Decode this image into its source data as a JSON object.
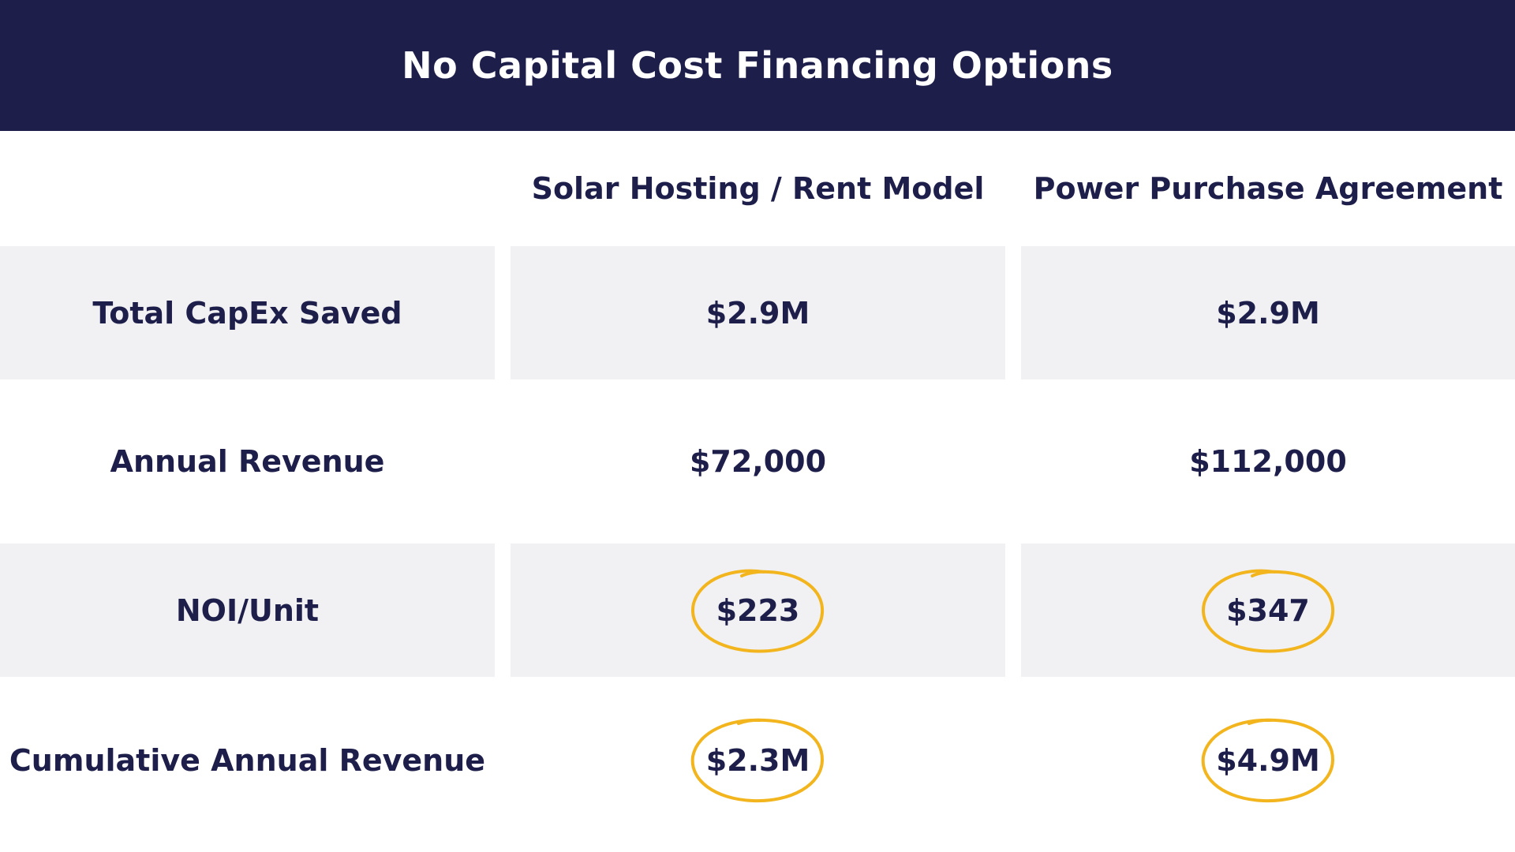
{
  "title": "No Capital Cost Financing Options",
  "columns": [
    "Solar Hosting / Rent Model",
    "Power Purchase Agreement"
  ],
  "rows": [
    {
      "label": "Total CapEx Saved",
      "values": [
        "$2.9M",
        "$2.9M"
      ],
      "circled": false
    },
    {
      "label": "Annual Revenue",
      "values": [
        "$72,000",
        "$112,000"
      ],
      "circled": false
    },
    {
      "label": "NOI/Unit",
      "values": [
        "$223",
        "$347"
      ],
      "circled": true
    },
    {
      "label": "Cumulative Annual Revenue",
      "values": [
        "$2.3M",
        "$4.9M"
      ],
      "circled": true
    }
  ],
  "colors": {
    "navy": "#1e1e4b",
    "row_shade": "#f1f1f3",
    "highlight_circle": "#f2b51e"
  }
}
